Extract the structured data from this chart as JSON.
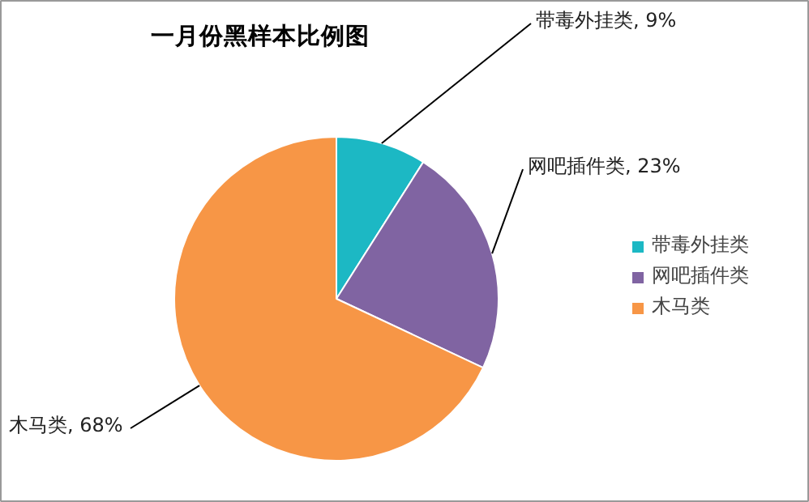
{
  "chart_data": {
    "type": "pie",
    "title": "一月份黑样本比例图",
    "categories": [
      "带毒外挂类",
      "网吧插件类",
      "木马类"
    ],
    "values": [
      9,
      23,
      68
    ],
    "colors": [
      "#1cb8c4",
      "#8064a2",
      "#f79646"
    ],
    "value_labels": [
      "带毒外挂类, 9%",
      "网吧插件类, 23%",
      "木马类, 68%"
    ],
    "legend": "right"
  }
}
